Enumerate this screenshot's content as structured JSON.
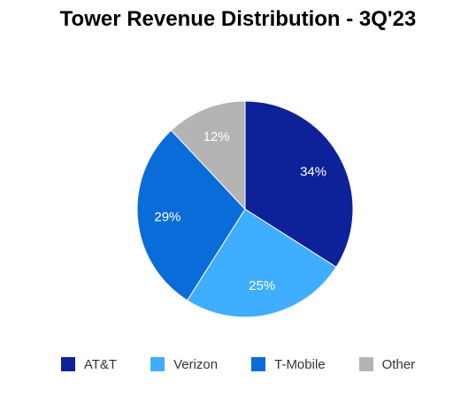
{
  "chart_data": {
    "type": "pie",
    "title": "Tower Revenue Distribution - 3Q'23",
    "slices": [
      {
        "label": "AT&T",
        "value": 34,
        "display": "34%",
        "color": "#0D2299"
      },
      {
        "label": "Verizon",
        "value": 25,
        "display": "25%",
        "color": "#40AEFF"
      },
      {
        "label": "T-Mobile",
        "value": 29,
        "display": "29%",
        "color": "#0A6CD8"
      },
      {
        "label": "Other",
        "value": 12,
        "display": "12%",
        "color": "#B4B4B4"
      }
    ],
    "legend_position": "bottom"
  }
}
